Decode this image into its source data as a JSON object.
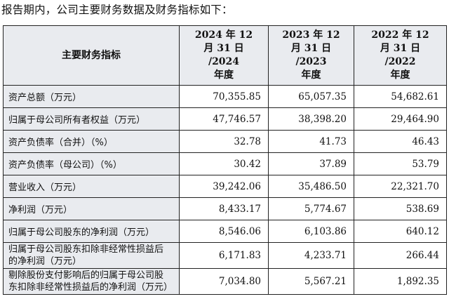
{
  "intro": "报告期内，公司主要财务数据及财务指标如下：",
  "table": {
    "header": {
      "indicator": "主要财务指标",
      "years": [
        {
          "line1": "2024 年 12",
          "line2": "月 31 日",
          "line3": "/2024",
          "line4": "年度"
        },
        {
          "line1": "2023 年 12",
          "line2": "月 31 日",
          "line3": "/2023",
          "line4": "年度"
        },
        {
          "line1": "2022 年 12",
          "line2": "月 31 日",
          "line3": "/2022",
          "line4": "年度"
        }
      ]
    },
    "rows": [
      {
        "label": "资产总额（万元）",
        "v2024": "70,355.85",
        "v2023": "65,057.35",
        "v2022": "54,682.61"
      },
      {
        "label": "归属于母公司所有者权益（万元）",
        "v2024": "47,746.57",
        "v2023": "38,398.20",
        "v2022": "29,464.90"
      },
      {
        "label": "资产负债率（合并）（%）",
        "v2024": "32.78",
        "v2023": "41.73",
        "v2022": "46.43"
      },
      {
        "label": "资产负债率（母公司）（%）",
        "v2024": "30.42",
        "v2023": "37.89",
        "v2022": "53.79"
      },
      {
        "label": "营业收入（万元）",
        "v2024": "39,242.06",
        "v2023": "35,486.50",
        "v2022": "22,321.70"
      },
      {
        "label": "净利润（万元）",
        "v2024": "8,433.17",
        "v2023": "5,774.67",
        "v2022": "538.69"
      },
      {
        "label": "归属于母公司股东的净利润（万元）",
        "v2024": "8,546.06",
        "v2023": "6,103.86",
        "v2022": "640.12"
      },
      {
        "label": "归属于母公司股东扣除非经常性损益后的净利润（万元）",
        "v2024": "6,171.83",
        "v2023": "4,233.71",
        "v2022": "266.44"
      },
      {
        "label": "剔除股份支付影响后的归属于母公司股东扣除非经常性损益后的净利润（万元）",
        "v2024": "7,034.80",
        "v2023": "5,567.21",
        "v2022": "1,892.35"
      }
    ]
  }
}
